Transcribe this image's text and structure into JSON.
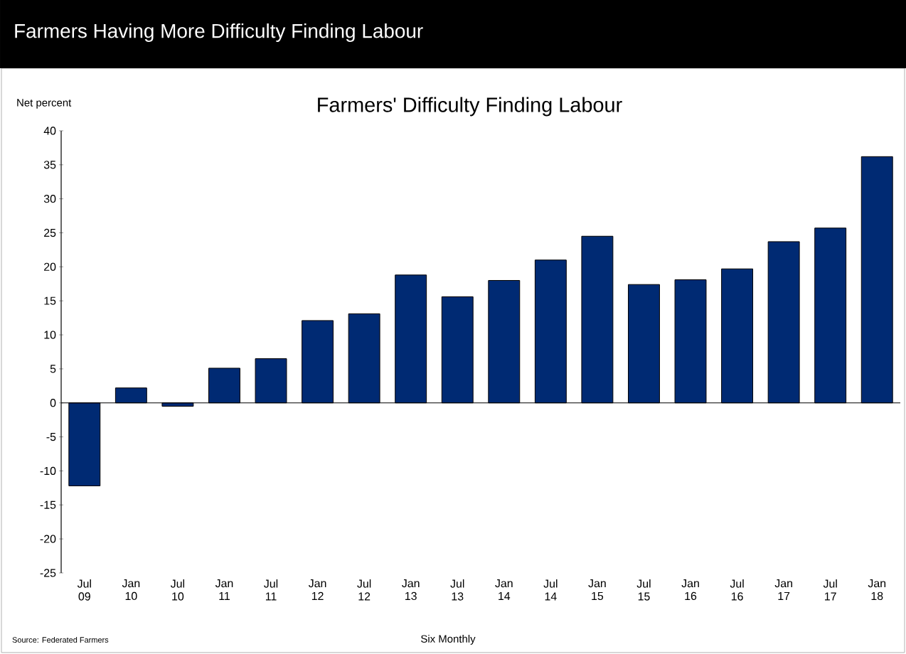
{
  "chart_data": {
    "type": "bar",
    "title": "Farmers Having More Difficulty Finding Labour",
    "subtitle": "Farmers' Difficulty Finding Labour",
    "ylabel": "Net percent",
    "xlabel": "Six Monthly",
    "annotations": [
      "Source: Federated Farmers"
    ],
    "categories": [
      "Jul 09",
      "Jan 10",
      "Jul 10",
      "Jan 11",
      "Jul 11",
      "Jan 12",
      "Jul 12",
      "Jan 13",
      "Jul 13",
      "Jan 14",
      "Jul 14",
      "Jan 15",
      "Jul 15",
      "Jan 16",
      "Jul 16",
      "Jan 17",
      "Jul 17",
      "Jan 18"
    ],
    "values": [
      -12.2,
      2.2,
      -0.5,
      5.1,
      6.5,
      12.1,
      13.1,
      18.8,
      15.6,
      18.0,
      21.0,
      24.5,
      17.4,
      18.1,
      19.7,
      23.7,
      25.7,
      36.2
    ],
    "color": "#002a73",
    "ylim": [
      -25,
      40
    ],
    "yticks": [
      -25,
      -20,
      -15,
      -10,
      -5,
      0,
      5,
      10,
      15,
      20,
      25,
      30,
      35,
      40
    ]
  }
}
